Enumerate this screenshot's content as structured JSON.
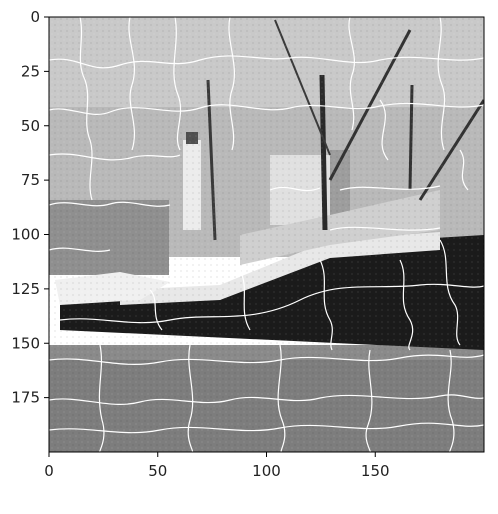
{
  "chart_data": {
    "type": "image",
    "colormap": "gray",
    "xlim": [
      0,
      200
    ],
    "ylim": [
      200,
      0
    ],
    "xticks": [
      {
        "value": 0,
        "label": "0"
      },
      {
        "value": 50,
        "label": "50"
      },
      {
        "value": 100,
        "label": "100"
      },
      {
        "value": 150,
        "label": "150"
      }
    ],
    "yticks": [
      {
        "value": 0,
        "label": "0"
      },
      {
        "value": 25,
        "label": "25"
      },
      {
        "value": 50,
        "label": "50"
      },
      {
        "value": 75,
        "label": "75"
      },
      {
        "value": 100,
        "label": "100"
      },
      {
        "value": 125,
        "label": "125"
      },
      {
        "value": 150,
        "label": "150"
      },
      {
        "value": 175,
        "label": "175"
      }
    ],
    "image_description_id": "grayscale-boat-harbor-superpixel-boundaries",
    "boundary_color": "#ffffff",
    "grid": false
  }
}
